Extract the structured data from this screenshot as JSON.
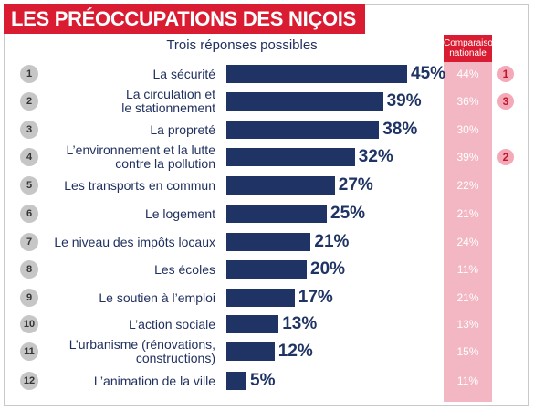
{
  "title": "LES PRÉOCCUPATIONS DES NIÇOIS",
  "subtitle": "Trois réponses possibles",
  "national_header_line1": "Comparaison",
  "national_header_line2": "nationale",
  "colors": {
    "title_bg": "#d91c31",
    "bar": "#1f3464",
    "national_column": "#f3b7c3",
    "rank_circle": "#c6c6c6"
  },
  "chart_data": {
    "type": "bar",
    "orientation": "horizontal",
    "title": "LES PRÉOCCUPATIONS DES NIÇOIS",
    "subtitle": "Trois réponses possibles",
    "unit": "%",
    "xlim": [
      0,
      50
    ],
    "grid": false,
    "categories": [
      "La sécurité",
      "La circulation et le stationnement",
      "La propreté",
      "L'environnement et la lutte contre la pollution",
      "Les transports en commun",
      "Le logement",
      "Le niveau des impôts locaux",
      "Les écoles",
      "Le soutien à l'emploi",
      "L'action sociale",
      "L'urbanisme (rénovations, constructions)",
      "L'animation de la ville"
    ],
    "rows": [
      {
        "rank": "1",
        "label_lines": [
          "La sécurité"
        ],
        "value": 45,
        "value_label": "45%",
        "national": "44%",
        "national_rank": "1"
      },
      {
        "rank": "2",
        "label_lines": [
          "La circulation et",
          "le stationnement"
        ],
        "value": 39,
        "value_label": "39%",
        "national": "36%",
        "national_rank": "3"
      },
      {
        "rank": "3",
        "label_lines": [
          "La propreté"
        ],
        "value": 38,
        "value_label": "38%",
        "national": "30%",
        "national_rank": ""
      },
      {
        "rank": "4",
        "label_lines": [
          "L’environnement et la lutte",
          "contre la pollution"
        ],
        "value": 32,
        "value_label": "32%",
        "national": "39%",
        "national_rank": "2"
      },
      {
        "rank": "5",
        "label_lines": [
          "Les transports en commun"
        ],
        "value": 27,
        "value_label": "27%",
        "national": "22%",
        "national_rank": ""
      },
      {
        "rank": "6",
        "label_lines": [
          "Le logement"
        ],
        "value": 25,
        "value_label": "25%",
        "national": "21%",
        "national_rank": ""
      },
      {
        "rank": "7",
        "label_lines": [
          "Le niveau des impôts locaux"
        ],
        "value": 21,
        "value_label": "21%",
        "national": "24%",
        "national_rank": ""
      },
      {
        "rank": "8",
        "label_lines": [
          "Les écoles"
        ],
        "value": 20,
        "value_label": "20%",
        "national": "11%",
        "national_rank": ""
      },
      {
        "rank": "9",
        "label_lines": [
          "Le soutien à l’emploi"
        ],
        "value": 17,
        "value_label": "17%",
        "national": "21%",
        "national_rank": ""
      },
      {
        "rank": "10",
        "label_lines": [
          "L’action sociale"
        ],
        "value": 13,
        "value_label": "13%",
        "national": "13%",
        "national_rank": ""
      },
      {
        "rank": "11",
        "label_lines": [
          "L’urbanisme (rénovations,",
          "constructions)"
        ],
        "value": 12,
        "value_label": "12%",
        "national": "15%",
        "national_rank": ""
      },
      {
        "rank": "12",
        "label_lines": [
          "L’animation de la ville"
        ],
        "value": 5,
        "value_label": "5%",
        "national": "11%",
        "national_rank": ""
      }
    ]
  }
}
